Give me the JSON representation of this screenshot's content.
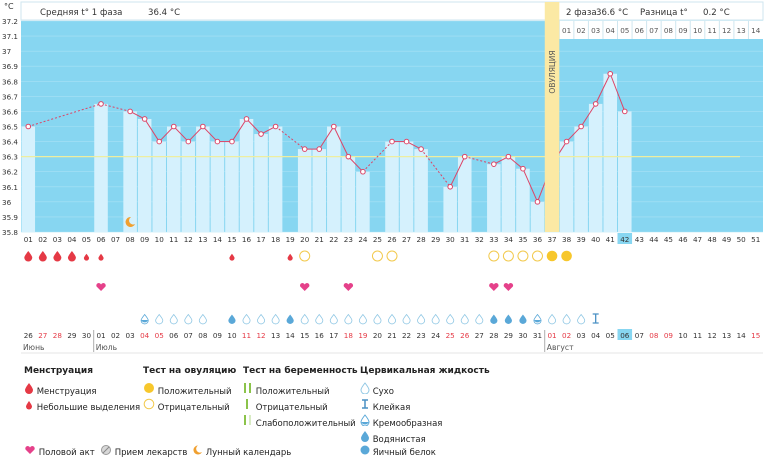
{
  "header": {
    "unit": "°C",
    "phase1_label": "Средняя t° 1 фаза",
    "phase1_value": "36.4 °C",
    "phase2_label": "2 фаза",
    "phase2_value": "36.6 °C",
    "diff_label": "Разница t°",
    "diff_value": "0.2 °C",
    "ovulation_label": "ОВУЛЯЦИЯ"
  },
  "colors": {
    "sky": "#87d6f1",
    "bar": "#d5f1fd",
    "line": "#dd4466",
    "ovulation": "#fbe9a4",
    "coverline": "#eeeea0",
    "current_day": "#87d6f1"
  },
  "chart_data": {
    "type": "bar",
    "title": "",
    "ylabel": "°C",
    "ylim": [
      35.8,
      37.2
    ],
    "yticks": [
      "37.2",
      "37.1",
      "37",
      "36.9",
      "36.8",
      "36.7",
      "36.6",
      "36.5",
      "36.4",
      "36.3",
      "36.2",
      "36.1",
      "36",
      "35.9",
      "35.8"
    ],
    "coverline": 36.3,
    "ovulation_day": 37,
    "current_day": 42,
    "days": [
      "01",
      "02",
      "03",
      "04",
      "05",
      "06",
      "07",
      "08",
      "09",
      "10",
      "11",
      "12",
      "13",
      "14",
      "15",
      "16",
      "17",
      "18",
      "19",
      "20",
      "21",
      "22",
      "23",
      "24",
      "25",
      "26",
      "27",
      "28",
      "29",
      "30",
      "31",
      "32",
      "33",
      "34",
      "35",
      "36",
      "37",
      "38",
      "39",
      "40",
      "41",
      "42",
      "43",
      "44",
      "45",
      "46",
      "47",
      "48",
      "49",
      "50",
      "51"
    ],
    "temperatures": [
      36.5,
      null,
      null,
      null,
      null,
      36.65,
      null,
      36.6,
      36.55,
      36.4,
      36.5,
      36.4,
      36.5,
      36.4,
      36.4,
      36.55,
      36.45,
      36.5,
      null,
      36.35,
      36.35,
      36.5,
      36.3,
      36.2,
      null,
      36.4,
      36.4,
      36.35,
      null,
      36.1,
      36.3,
      null,
      36.25,
      36.3,
      36.22,
      36.0,
      36.25,
      36.4,
      36.5,
      36.65,
      36.85,
      36.6,
      null,
      null,
      null,
      null,
      null,
      null,
      null,
      null,
      null
    ],
    "bar_days": [
      1,
      6,
      8,
      9,
      10,
      11,
      12,
      13,
      14,
      15,
      16,
      17,
      18,
      20,
      21,
      22,
      23,
      24,
      26,
      27,
      28,
      30,
      31,
      33,
      34,
      35,
      36,
      37,
      38,
      39,
      40,
      41,
      42
    ],
    "dates": [
      "26",
      "27",
      "28",
      "29",
      "30",
      "01",
      "02",
      "03",
      "04",
      "05",
      "06",
      "07",
      "08",
      "09",
      "10",
      "11",
      "12",
      "13",
      "14",
      "15",
      "16",
      "17",
      "18",
      "19",
      "20",
      "21",
      "22",
      "23",
      "24",
      "25",
      "26",
      "27",
      "28",
      "29",
      "30",
      "31",
      "01",
      "02",
      "03",
      "04",
      "05",
      "06",
      "07",
      "08",
      "09",
      "10",
      "11",
      "12",
      "13",
      "14",
      "15"
    ],
    "weekend_days": [
      2,
      3,
      9,
      10,
      16,
      17,
      23,
      24,
      30,
      31,
      37,
      38,
      44,
      45,
      51
    ],
    "months": [
      "Июнь",
      "Июль",
      "Август"
    ],
    "menstruation_days": [
      1,
      2,
      3,
      4,
      5,
      6
    ],
    "spotting_days": [
      5,
      6,
      15,
      19
    ],
    "ovulation_test_positive": [
      37,
      38
    ],
    "ovulation_test_negative": [
      20,
      25,
      26,
      33,
      34,
      35,
      36
    ],
    "intercourse_days": [
      6,
      20,
      23,
      33,
      34
    ],
    "moon_day": 8,
    "fluid_dry": [
      10,
      11,
      12,
      13,
      16,
      17,
      18,
      20,
      21,
      22,
      23,
      24,
      25,
      26,
      27,
      28,
      29,
      30,
      31,
      32,
      37,
      38,
      39
    ],
    "fluid_creamy": [
      9,
      36
    ],
    "fluid_watery": [
      15,
      19,
      33,
      34,
      35
    ],
    "fluid_sticky": [
      40
    ]
  },
  "legend": {
    "menses": {
      "title": "Менструация",
      "items": [
        "Менструация",
        "Небольшие выделения"
      ]
    },
    "ovulation_test": {
      "title": "Тест на овуляцию",
      "items": [
        "Положительный",
        "Отрицательный"
      ]
    },
    "pregnancy_test": {
      "title": "Тест на беременность",
      "items": [
        "Положительный",
        "Отрицательный",
        "Слабоположительный"
      ]
    },
    "cervical": {
      "title": "Цервикальная жидкость",
      "items": [
        "Сухо",
        "Клейкая",
        "Кремообразная",
        "Водянистая",
        "Яичный белок"
      ]
    },
    "bottom": [
      "Половой акт",
      "Прием лекарств",
      "Лунный календарь"
    ]
  }
}
